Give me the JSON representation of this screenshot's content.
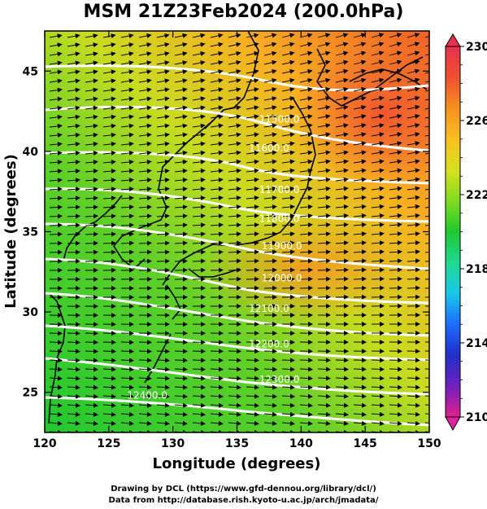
{
  "title": "MSM 21Z23Feb2024 (200.0hPa)",
  "credits": {
    "line1": "Drawing by DCL (https://www.gfd-dennou.org/library/dcl/)",
    "line2": "Data from http://database.rish.kyoto-u.ac.jp/arch/jmadata/"
  },
  "chart_data": {
    "type": "heatmap",
    "xlabel": "Longitude (degrees)",
    "ylabel": "Latitude  (degrees)",
    "xlim": [
      120,
      150
    ],
    "ylim": [
      22.5,
      47.5
    ],
    "x_ticks": [
      "120",
      "125",
      "130",
      "135",
      "140",
      "145",
      "150"
    ],
    "y_ticks": [
      "25",
      "30",
      "35",
      "40",
      "45"
    ],
    "colorbar": {
      "min": 210,
      "max": 230,
      "labels": [
        "230",
        "226",
        "222",
        "218",
        "214",
        "210"
      ],
      "colors": [
        "#e0208c",
        "#7020c0",
        "#2030c8",
        "#1e6cff",
        "#18c8e8",
        "#20d890",
        "#20c830",
        "#80dc20",
        "#d8e020",
        "#f8c020",
        "#f89020",
        "#f05030",
        "#e83050"
      ]
    },
    "colors": {
      "contour": "#ffffff",
      "arrows": "#000000",
      "coast": "#000000"
    },
    "contour_labels": [
      {
        "text": "11500.0",
        "lon": 138.3,
        "lat": 41.8
      },
      {
        "text": "11600.0",
        "lon": 137.5,
        "lat": 40.0
      },
      {
        "text": "11700.0",
        "lon": 138.3,
        "lat": 37.4
      },
      {
        "text": "11800.0",
        "lon": 138.3,
        "lat": 35.6
      },
      {
        "text": "11900.0",
        "lon": 138.5,
        "lat": 33.9
      },
      {
        "text": "12000.0",
        "lon": 138.5,
        "lat": 31.9
      },
      {
        "text": "12100.0",
        "lon": 137.5,
        "lat": 30.0
      },
      {
        "text": "12200.0",
        "lon": 137.5,
        "lat": 27.8
      },
      {
        "text": "12300.0",
        "lon": 138.3,
        "lat": 25.6
      },
      {
        "text": "12400.0",
        "lon": 128.0,
        "lat": 24.6
      }
    ]
  }
}
